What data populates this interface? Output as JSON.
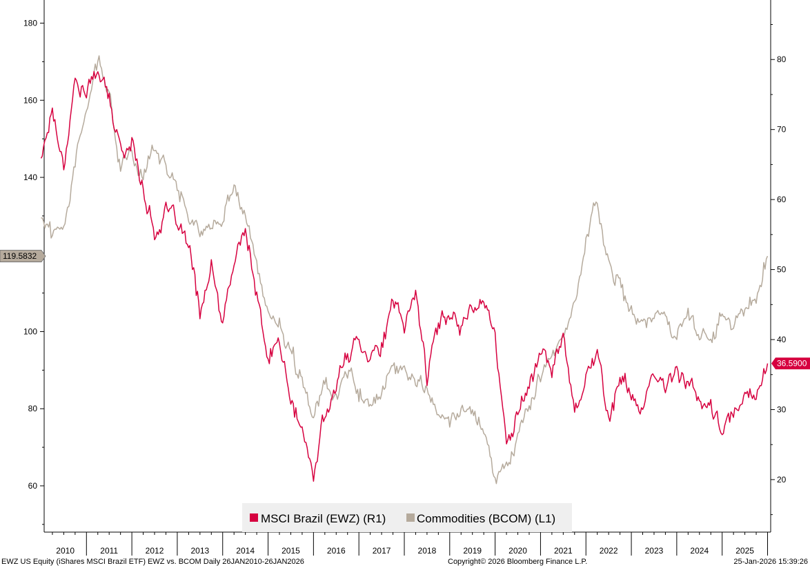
{
  "chart_data": {
    "type": "line",
    "title": "",
    "xlabel": "",
    "x_ticks": [
      "2010",
      "2011",
      "2012",
      "2013",
      "2014",
      "2015",
      "2016",
      "2017",
      "2018",
      "2019",
      "2020",
      "2021",
      "2022",
      "2023",
      "2024",
      "2025"
    ],
    "x_range": [
      "2010-01-26",
      "2026-01-26"
    ],
    "left_axis": {
      "ticks": [
        "60",
        "80",
        "100",
        "120",
        "140",
        "160",
        "180"
      ],
      "ylim": [
        48,
        186
      ],
      "last_value_label": "119.5832",
      "last_value_color": "#b5aa9c"
    },
    "right_axis": {
      "ticks": [
        "20",
        "30",
        "40",
        "50",
        "60",
        "70",
        "80"
      ],
      "ylim": [
        12.5,
        88.5
      ],
      "last_value_label": "36.5900",
      "last_value_color": "#d6003f"
    },
    "legend_position": "bottom-center",
    "grid": false,
    "series": [
      {
        "name": "MSCI Brazil (EWZ) (R1)",
        "axis": "right",
        "color": "#d6003f",
        "x": [
          "2010-01",
          "2010-04",
          "2010-07",
          "2010-10",
          "2011-01",
          "2011-04",
          "2011-07",
          "2011-10",
          "2012-01",
          "2012-04",
          "2012-07",
          "2012-10",
          "2013-01",
          "2013-04",
          "2013-07",
          "2013-10",
          "2014-01",
          "2014-04",
          "2014-07",
          "2014-10",
          "2015-01",
          "2015-04",
          "2015-07",
          "2015-10",
          "2016-01",
          "2016-04",
          "2016-07",
          "2016-10",
          "2017-01",
          "2017-04",
          "2017-07",
          "2017-10",
          "2018-01",
          "2018-04",
          "2018-07",
          "2018-10",
          "2019-01",
          "2019-04",
          "2019-07",
          "2019-10",
          "2020-01",
          "2020-04",
          "2020-07",
          "2020-10",
          "2021-01",
          "2021-04",
          "2021-07",
          "2021-10",
          "2022-01",
          "2022-04",
          "2022-07",
          "2022-10",
          "2023-01",
          "2023-04",
          "2023-07",
          "2023-10",
          "2024-01",
          "2024-04",
          "2024-07",
          "2024-10",
          "2025-01",
          "2025-04",
          "2025-07",
          "2025-10",
          "2026-01"
        ],
        "values": [
          66,
          73,
          65,
          77,
          75,
          79,
          74,
          67,
          68,
          62,
          55,
          58,
          57,
          53,
          44,
          50,
          42,
          51,
          56,
          46,
          37,
          40,
          31,
          27,
          20,
          30,
          33,
          38,
          40,
          38,
          39,
          45,
          42,
          47,
          35,
          42,
          44,
          42,
          45,
          46,
          40,
          25,
          30,
          33,
          39,
          35,
          41,
          30,
          35,
          38,
          29,
          34,
          33,
          29,
          35,
          33,
          36,
          34,
          31,
          30,
          27,
          29,
          32,
          33,
          36.59
        ]
      },
      {
        "name": "Commodities (BCOM) (L1)",
        "axis": "left",
        "color": "#b5aa9c",
        "x": [
          "2010-01",
          "2010-04",
          "2010-07",
          "2010-10",
          "2011-01",
          "2011-04",
          "2011-07",
          "2011-10",
          "2012-01",
          "2012-04",
          "2012-07",
          "2012-10",
          "2013-01",
          "2013-04",
          "2013-07",
          "2013-10",
          "2014-01",
          "2014-04",
          "2014-07",
          "2014-10",
          "2015-01",
          "2015-04",
          "2015-07",
          "2015-10",
          "2016-01",
          "2016-04",
          "2016-07",
          "2016-10",
          "2017-01",
          "2017-04",
          "2017-07",
          "2017-10",
          "2018-01",
          "2018-04",
          "2018-07",
          "2018-10",
          "2019-01",
          "2019-04",
          "2019-07",
          "2019-10",
          "2020-01",
          "2020-04",
          "2020-07",
          "2020-10",
          "2021-01",
          "2021-04",
          "2021-07",
          "2021-10",
          "2022-01",
          "2022-04",
          "2022-07",
          "2022-10",
          "2023-01",
          "2023-04",
          "2023-07",
          "2023-10",
          "2024-01",
          "2024-04",
          "2024-07",
          "2024-10",
          "2025-01",
          "2025-04",
          "2025-07",
          "2025-10",
          "2026-01"
        ],
        "values": [
          130,
          125,
          127,
          145,
          160,
          170,
          162,
          143,
          147,
          140,
          148,
          142,
          138,
          130,
          126,
          127,
          130,
          137,
          131,
          117,
          103,
          101,
          94,
          87,
          78,
          86,
          84,
          89,
          85,
          81,
          84,
          89,
          91,
          89,
          84,
          80,
          78,
          81,
          80,
          76,
          61,
          68,
          72,
          81,
          89,
          94,
          96,
          108,
          125,
          133,
          116,
          112,
          105,
          102,
          103,
          104,
          100,
          105,
          99,
          99,
          104,
          101,
          105,
          109,
          119.58
        ]
      }
    ]
  },
  "footer": {
    "left": "EWZ US Equity (iShares MSCI Brazil ETF) EWZ vs. BCOM Daily 26JAN2010-26JAN2026",
    "center": "Copyright© 2026 Bloomberg Finance L.P.",
    "right": "25-Jan-2026 15:39:26"
  }
}
